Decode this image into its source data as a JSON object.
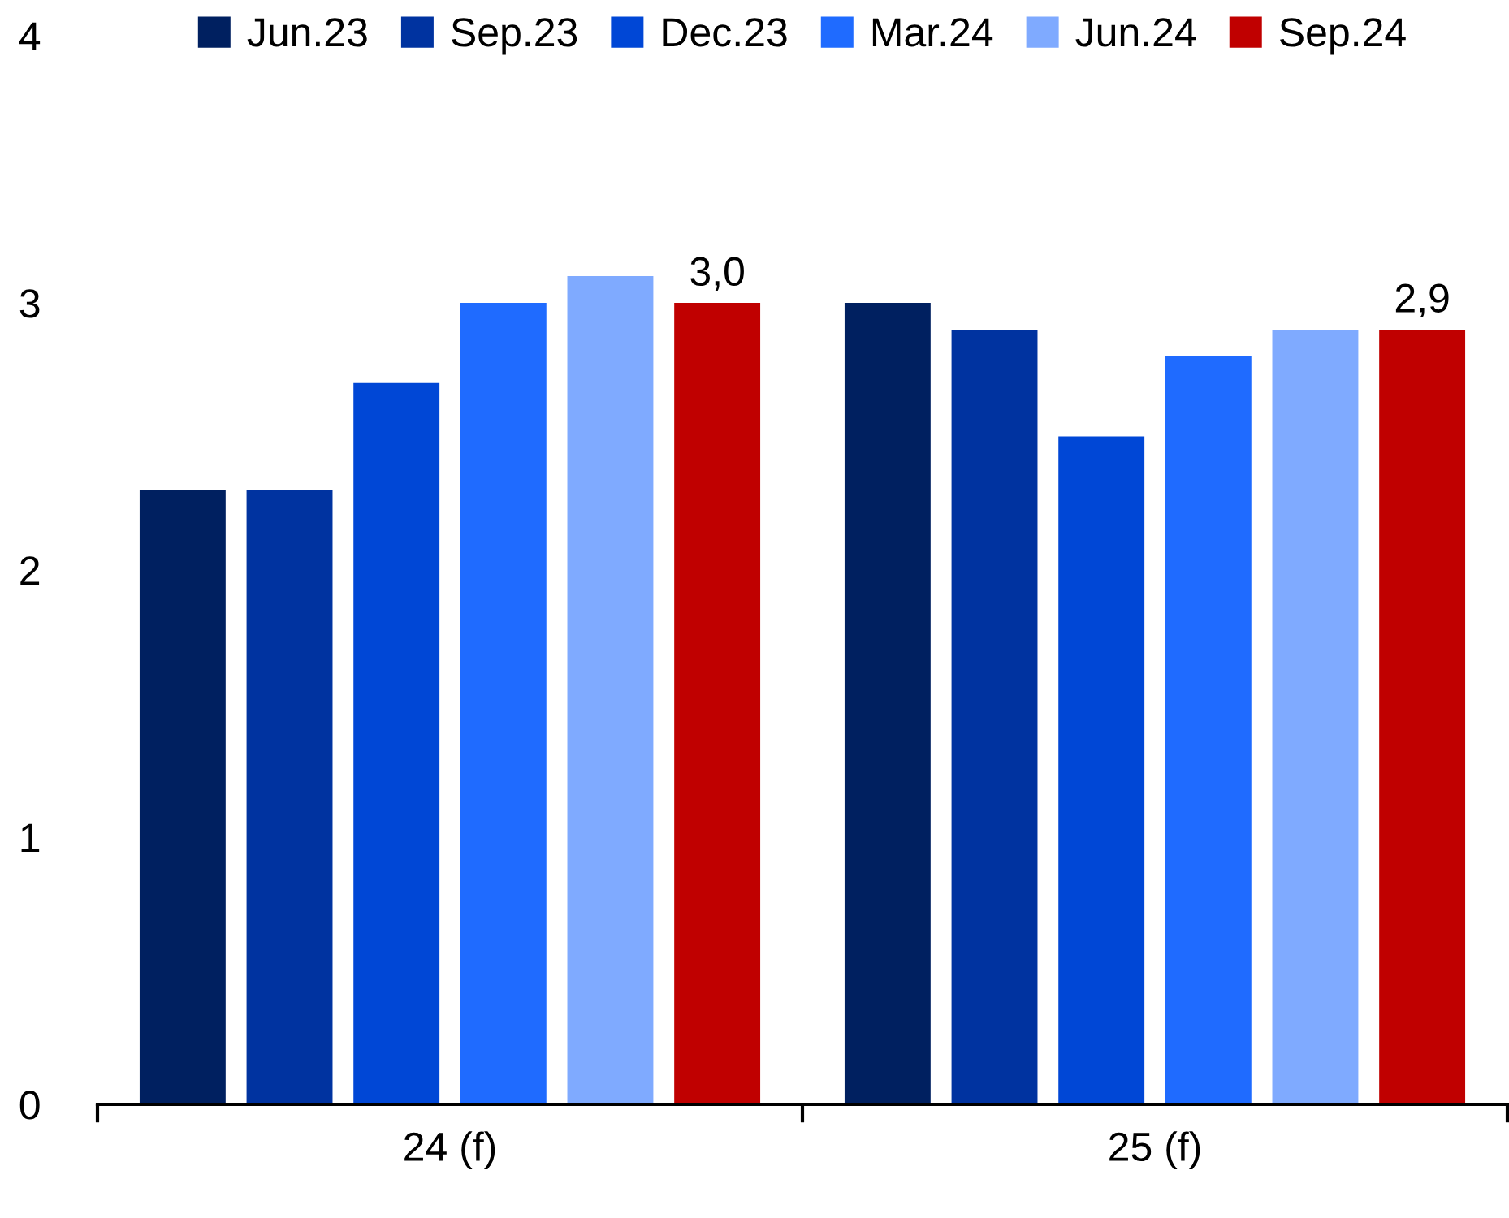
{
  "chart_data": {
    "type": "bar",
    "categories": [
      "24 (f)",
      "25 (f)"
    ],
    "series": [
      {
        "name": "Jun.23",
        "color": "#002060",
        "values": [
          2.3,
          3.0
        ]
      },
      {
        "name": "Sep.23",
        "color": "#0033a0",
        "values": [
          2.3,
          2.9
        ]
      },
      {
        "name": "Dec.23",
        "color": "#0047d6",
        "values": [
          2.7,
          2.5
        ]
      },
      {
        "name": "Mar.24",
        "color": "#1f6bff",
        "values": [
          3.0,
          2.8
        ]
      },
      {
        "name": "Jun.24",
        "color": "#7faaff",
        "values": [
          3.1,
          2.9
        ]
      },
      {
        "name": "Sep.24",
        "color": "#c00000",
        "values": [
          3.0,
          2.9
        ],
        "value_labels": [
          "3,0",
          "2,9"
        ]
      }
    ],
    "ylim": [
      0,
      4
    ],
    "yticks": [
      0,
      1,
      2,
      3,
      4
    ],
    "grid": false,
    "legend": "top"
  }
}
